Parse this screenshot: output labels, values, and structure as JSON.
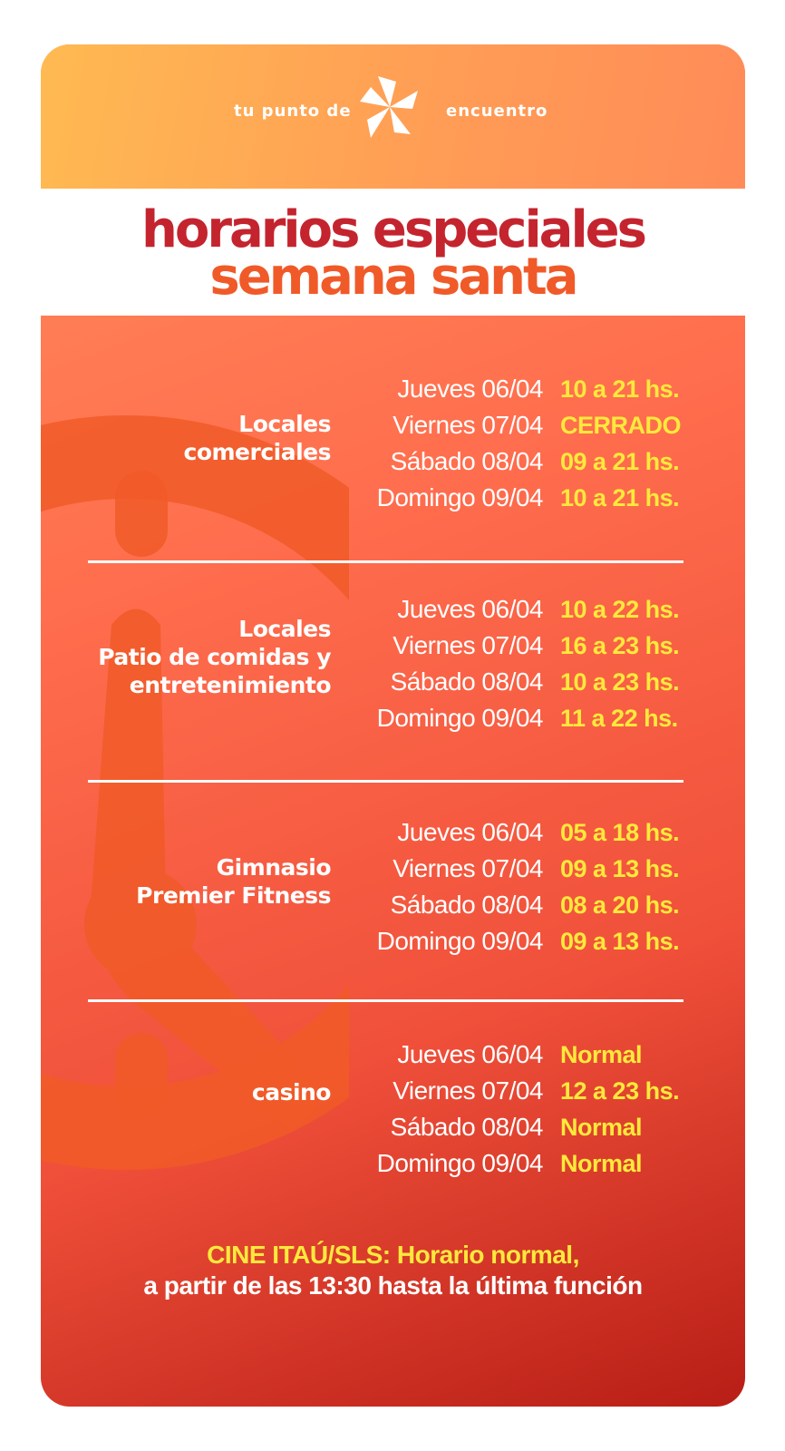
{
  "header": {
    "tagline_left": "tu punto de",
    "tagline_right": "encuentro",
    "logo_icon": "star-pinwheel-icon"
  },
  "title": {
    "line1": "horarios especiales",
    "line2": "semana santa"
  },
  "colors": {
    "title_red": "#c4242e",
    "title_orange": "#f05a29",
    "hours_yellow": "#ffe93c",
    "header_orange": "#ffa253"
  },
  "sections": [
    {
      "label_lines": [
        "Locales",
        "comerciales"
      ],
      "rows": [
        {
          "day": "Jueves 06/04",
          "hours": "10 a 21 hs."
        },
        {
          "day": "Viernes 07/04",
          "hours": "CERRADO"
        },
        {
          "day": "Sábado 08/04",
          "hours": "09 a 21 hs."
        },
        {
          "day": "Domingo 09/04",
          "hours": "10 a 21 hs."
        }
      ]
    },
    {
      "label_lines": [
        "Locales",
        "Patio de comidas y",
        "entretenimiento"
      ],
      "rows": [
        {
          "day": "Jueves 06/04",
          "hours": "10 a 22 hs."
        },
        {
          "day": "Viernes 07/04",
          "hours": "16 a 23 hs."
        },
        {
          "day": "Sábado 08/04",
          "hours": "10 a 23 hs."
        },
        {
          "day": "Domingo 09/04",
          "hours": "11 a 22 hs."
        }
      ]
    },
    {
      "label_lines": [
        "Gimnasio",
        "Premier Fitness"
      ],
      "rows": [
        {
          "day": "Jueves 06/04",
          "hours": "05 a 18 hs."
        },
        {
          "day": "Viernes 07/04",
          "hours": "09 a 13 hs."
        },
        {
          "day": "Sábado 08/04",
          "hours": "08 a 20 hs."
        },
        {
          "day": "Domingo 09/04",
          "hours": "09 a 13 hs."
        }
      ]
    },
    {
      "label_lines": [
        "casino"
      ],
      "rows": [
        {
          "day": "Jueves 06/04",
          "hours": "Normal"
        },
        {
          "day": "Viernes 07/04",
          "hours": "12 a 23 hs."
        },
        {
          "day": "Sábado 08/04",
          "hours": "Normal"
        },
        {
          "day": "Domingo 09/04",
          "hours": "Normal"
        }
      ]
    }
  ],
  "footer": {
    "line1": "CINE ITAÚ/SLS: Horario normal,",
    "line2": "a partir de las 13:30 hasta la última función"
  },
  "background_icon": "clock-icon"
}
